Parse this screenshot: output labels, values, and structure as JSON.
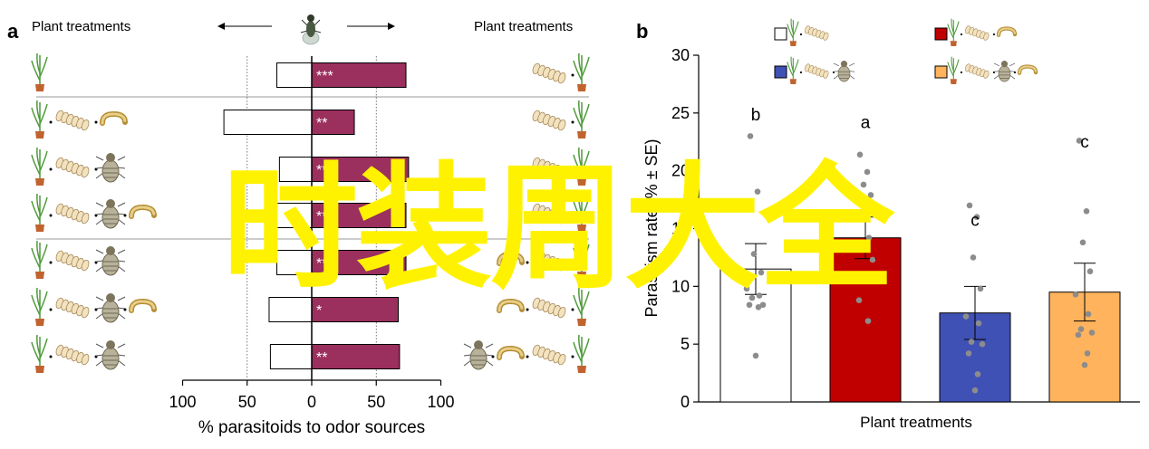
{
  "chart_data": [
    {
      "panel_label": "a",
      "type": "bar",
      "orientation": "horizontal-diverging",
      "header_left": "Plant treatments",
      "header_right": "Plant treatments",
      "xlabel": "% parasitoids to odor sources",
      "xticks": [
        "100",
        "50",
        "0",
        "50",
        "100"
      ],
      "xlim": [
        -100,
        100
      ],
      "reference_lines": [
        -50,
        50
      ],
      "rows": [
        {
          "left": -27,
          "right": 73,
          "sig": "***"
        },
        {
          "left": -68,
          "right": 33,
          "sig": "**"
        },
        {
          "left": -25,
          "right": 75,
          "sig": "***"
        },
        {
          "left": -27,
          "right": 73,
          "sig": "**"
        },
        {
          "left": -27,
          "right": 73,
          "sig": "**"
        },
        {
          "left": -33,
          "right": 67,
          "sig": "*"
        },
        {
          "left": -32,
          "right": 68,
          "sig": "**"
        }
      ],
      "left_icons": [
        [
          "plant"
        ],
        [
          "plant",
          "eggs",
          "larva"
        ],
        [
          "plant",
          "eggs",
          "wasp"
        ],
        [
          "plant",
          "eggs",
          "wasp",
          "larva"
        ],
        [
          "plant",
          "eggs",
          "wasp"
        ],
        [
          "plant",
          "eggs",
          "wasp",
          "larva"
        ],
        [
          "plant",
          "eggs",
          "wasp"
        ]
      ],
      "right_icons": [
        [
          "eggs",
          "plant"
        ],
        [
          "eggs",
          "plant"
        ],
        [
          "eggs",
          "plant"
        ],
        [
          "eggs",
          "plant"
        ],
        [
          "larva",
          "eggs",
          "plant"
        ],
        [
          "larva",
          "eggs",
          "plant"
        ],
        [
          "wasp",
          "larva",
          "eggs",
          "plant"
        ]
      ],
      "colors": {
        "bar_right": "#9b2f5e",
        "bar_left": "#ffffff"
      }
    },
    {
      "panel_label": "b",
      "type": "bar",
      "ylabel": "Parasitism rate (% ± SE)",
      "xlabel": "Plant treatments",
      "ylim": [
        0,
        30
      ],
      "yticks": [
        "0",
        "5",
        "10",
        "15",
        "20",
        "25",
        "30"
      ],
      "series": [
        {
          "value": 11.5,
          "se": 2.2,
          "letter": "b",
          "color": "#ffffff",
          "points": [
            23,
            18.2,
            12.8,
            11.2,
            9.8,
            9.2,
            9.0,
            8.4,
            8.4,
            8.2,
            4.0
          ]
        },
        {
          "value": 14.2,
          "se": 1.8,
          "letter": "a",
          "color": "#c00000",
          "points": [
            21.4,
            19.9,
            18.8,
            17.9,
            16.2,
            14.2,
            13.2,
            12.3,
            8.8,
            7.0
          ]
        },
        {
          "value": 7.7,
          "se": 2.3,
          "letter": "c",
          "color": "#3f51b5",
          "points": [
            17.0,
            16.0,
            12.5,
            9.8,
            7.4,
            6.8,
            5.2,
            5.0,
            4.2,
            2.4,
            1.0
          ]
        },
        {
          "value": 9.5,
          "se": 2.5,
          "letter": "c",
          "color": "#ffb35c",
          "points": [
            22.6,
            16.5,
            13.8,
            11.3,
            9.3,
            7.6,
            6.3,
            6.0,
            5.8,
            4.2,
            3.2
          ]
        }
      ],
      "legend": [
        {
          "color": "#ffffff",
          "icons": [
            "plant",
            "eggs"
          ]
        },
        {
          "color": "#c00000",
          "icons": [
            "plant",
            "eggs",
            "larva"
          ]
        },
        {
          "color": "#3f51b5",
          "icons": [
            "plant",
            "eggs",
            "wasp"
          ]
        },
        {
          "color": "#ffb35c",
          "icons": [
            "plant",
            "eggs",
            "wasp",
            "larva"
          ]
        }
      ]
    }
  ],
  "watermark": "时装周大全"
}
